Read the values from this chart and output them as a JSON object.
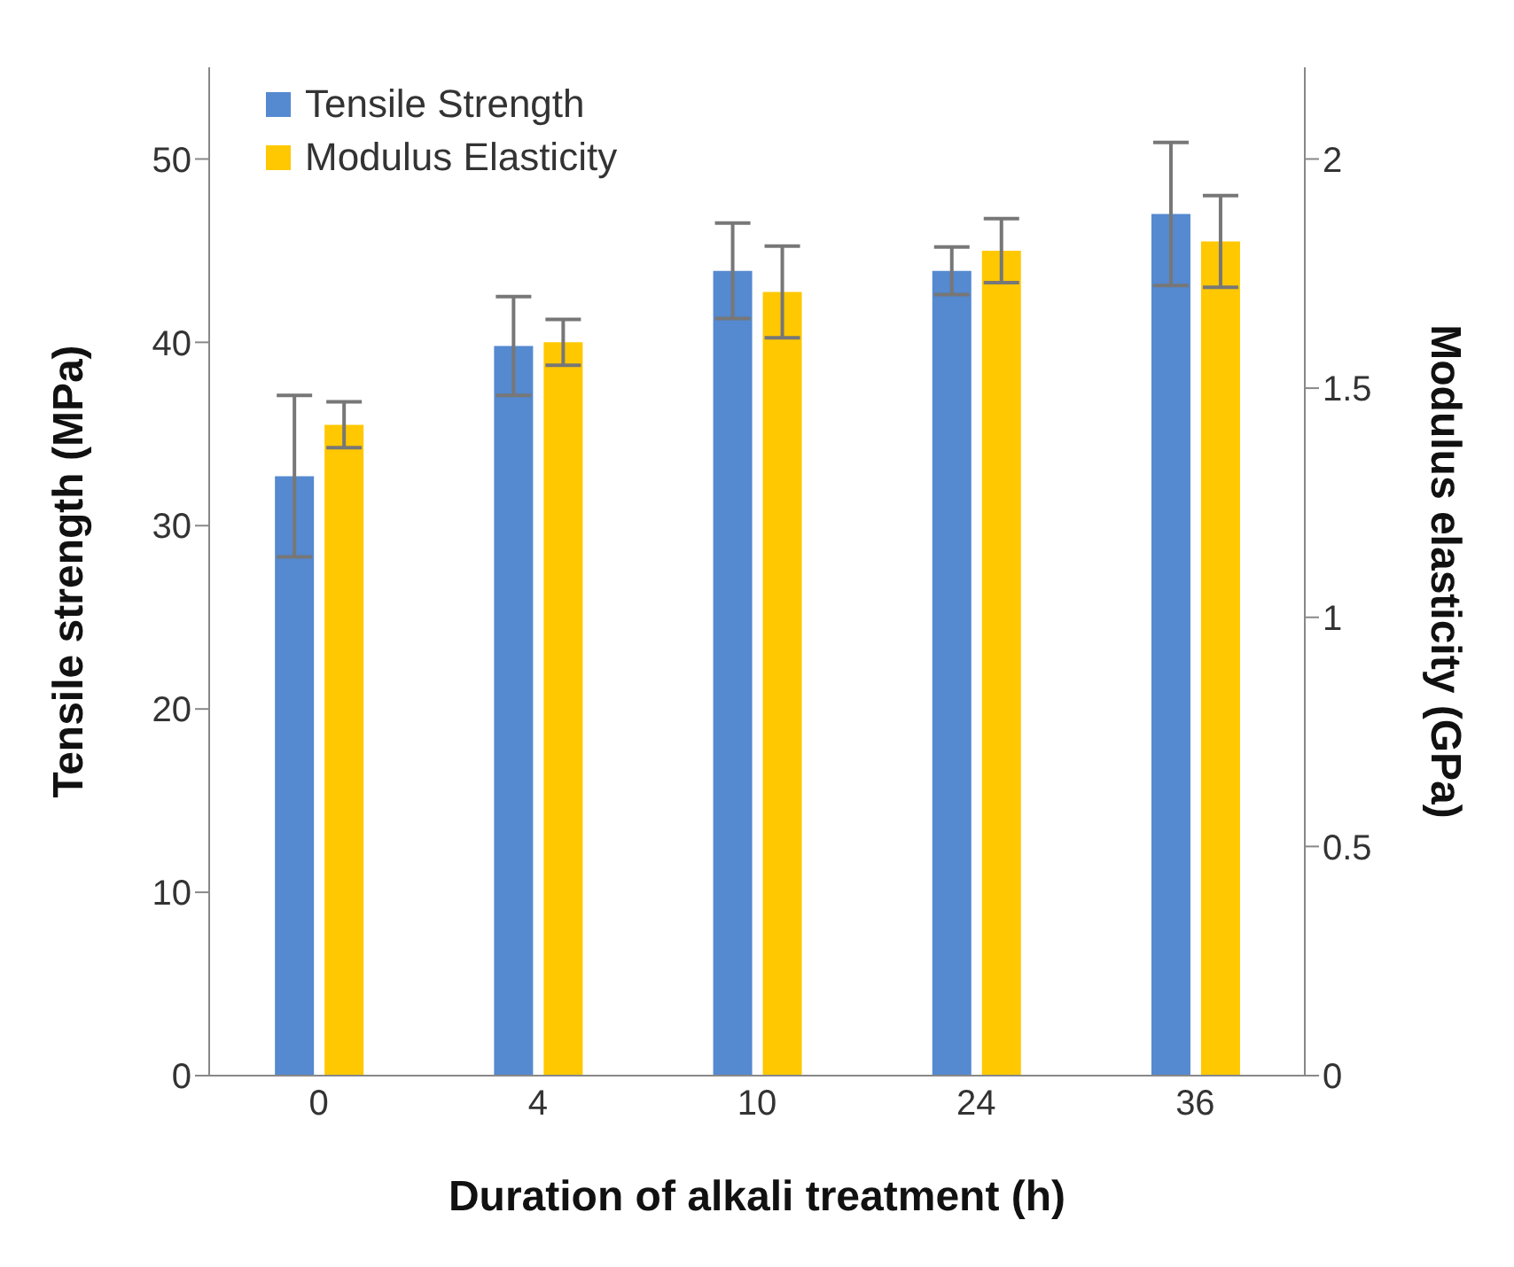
{
  "chart_data": {
    "type": "bar",
    "xlabel": "Duration of alkali treatment (h)",
    "ylabel": "Tensile strength (MPa)",
    "y2label": "Modulus elasticity (GPa)",
    "categories": [
      "0",
      "4",
      "10",
      "24",
      "36"
    ],
    "series": [
      {
        "name": "Tensile Strength",
        "color": "#5589d0",
        "values": [
          32.7,
          39.8,
          43.9,
          43.9,
          47.0
        ],
        "errors": [
          4.4,
          2.7,
          2.6,
          1.3,
          3.9
        ]
      },
      {
        "name": "Modulus Elasticity",
        "color": "#ffc800",
        "axis": "y2",
        "values": [
          1.42,
          1.6,
          1.71,
          1.8,
          1.82
        ],
        "errors": [
          0.05,
          0.05,
          0.1,
          0.07,
          0.1
        ]
      }
    ],
    "ylim": [
      0,
      55
    ],
    "yticks": [
      0,
      10,
      20,
      30,
      40,
      50
    ],
    "y2lim": [
      0,
      2.2
    ],
    "y2ticks": [
      0,
      0.5,
      1,
      1.5,
      2
    ],
    "grid": false,
    "legend": "top left"
  }
}
